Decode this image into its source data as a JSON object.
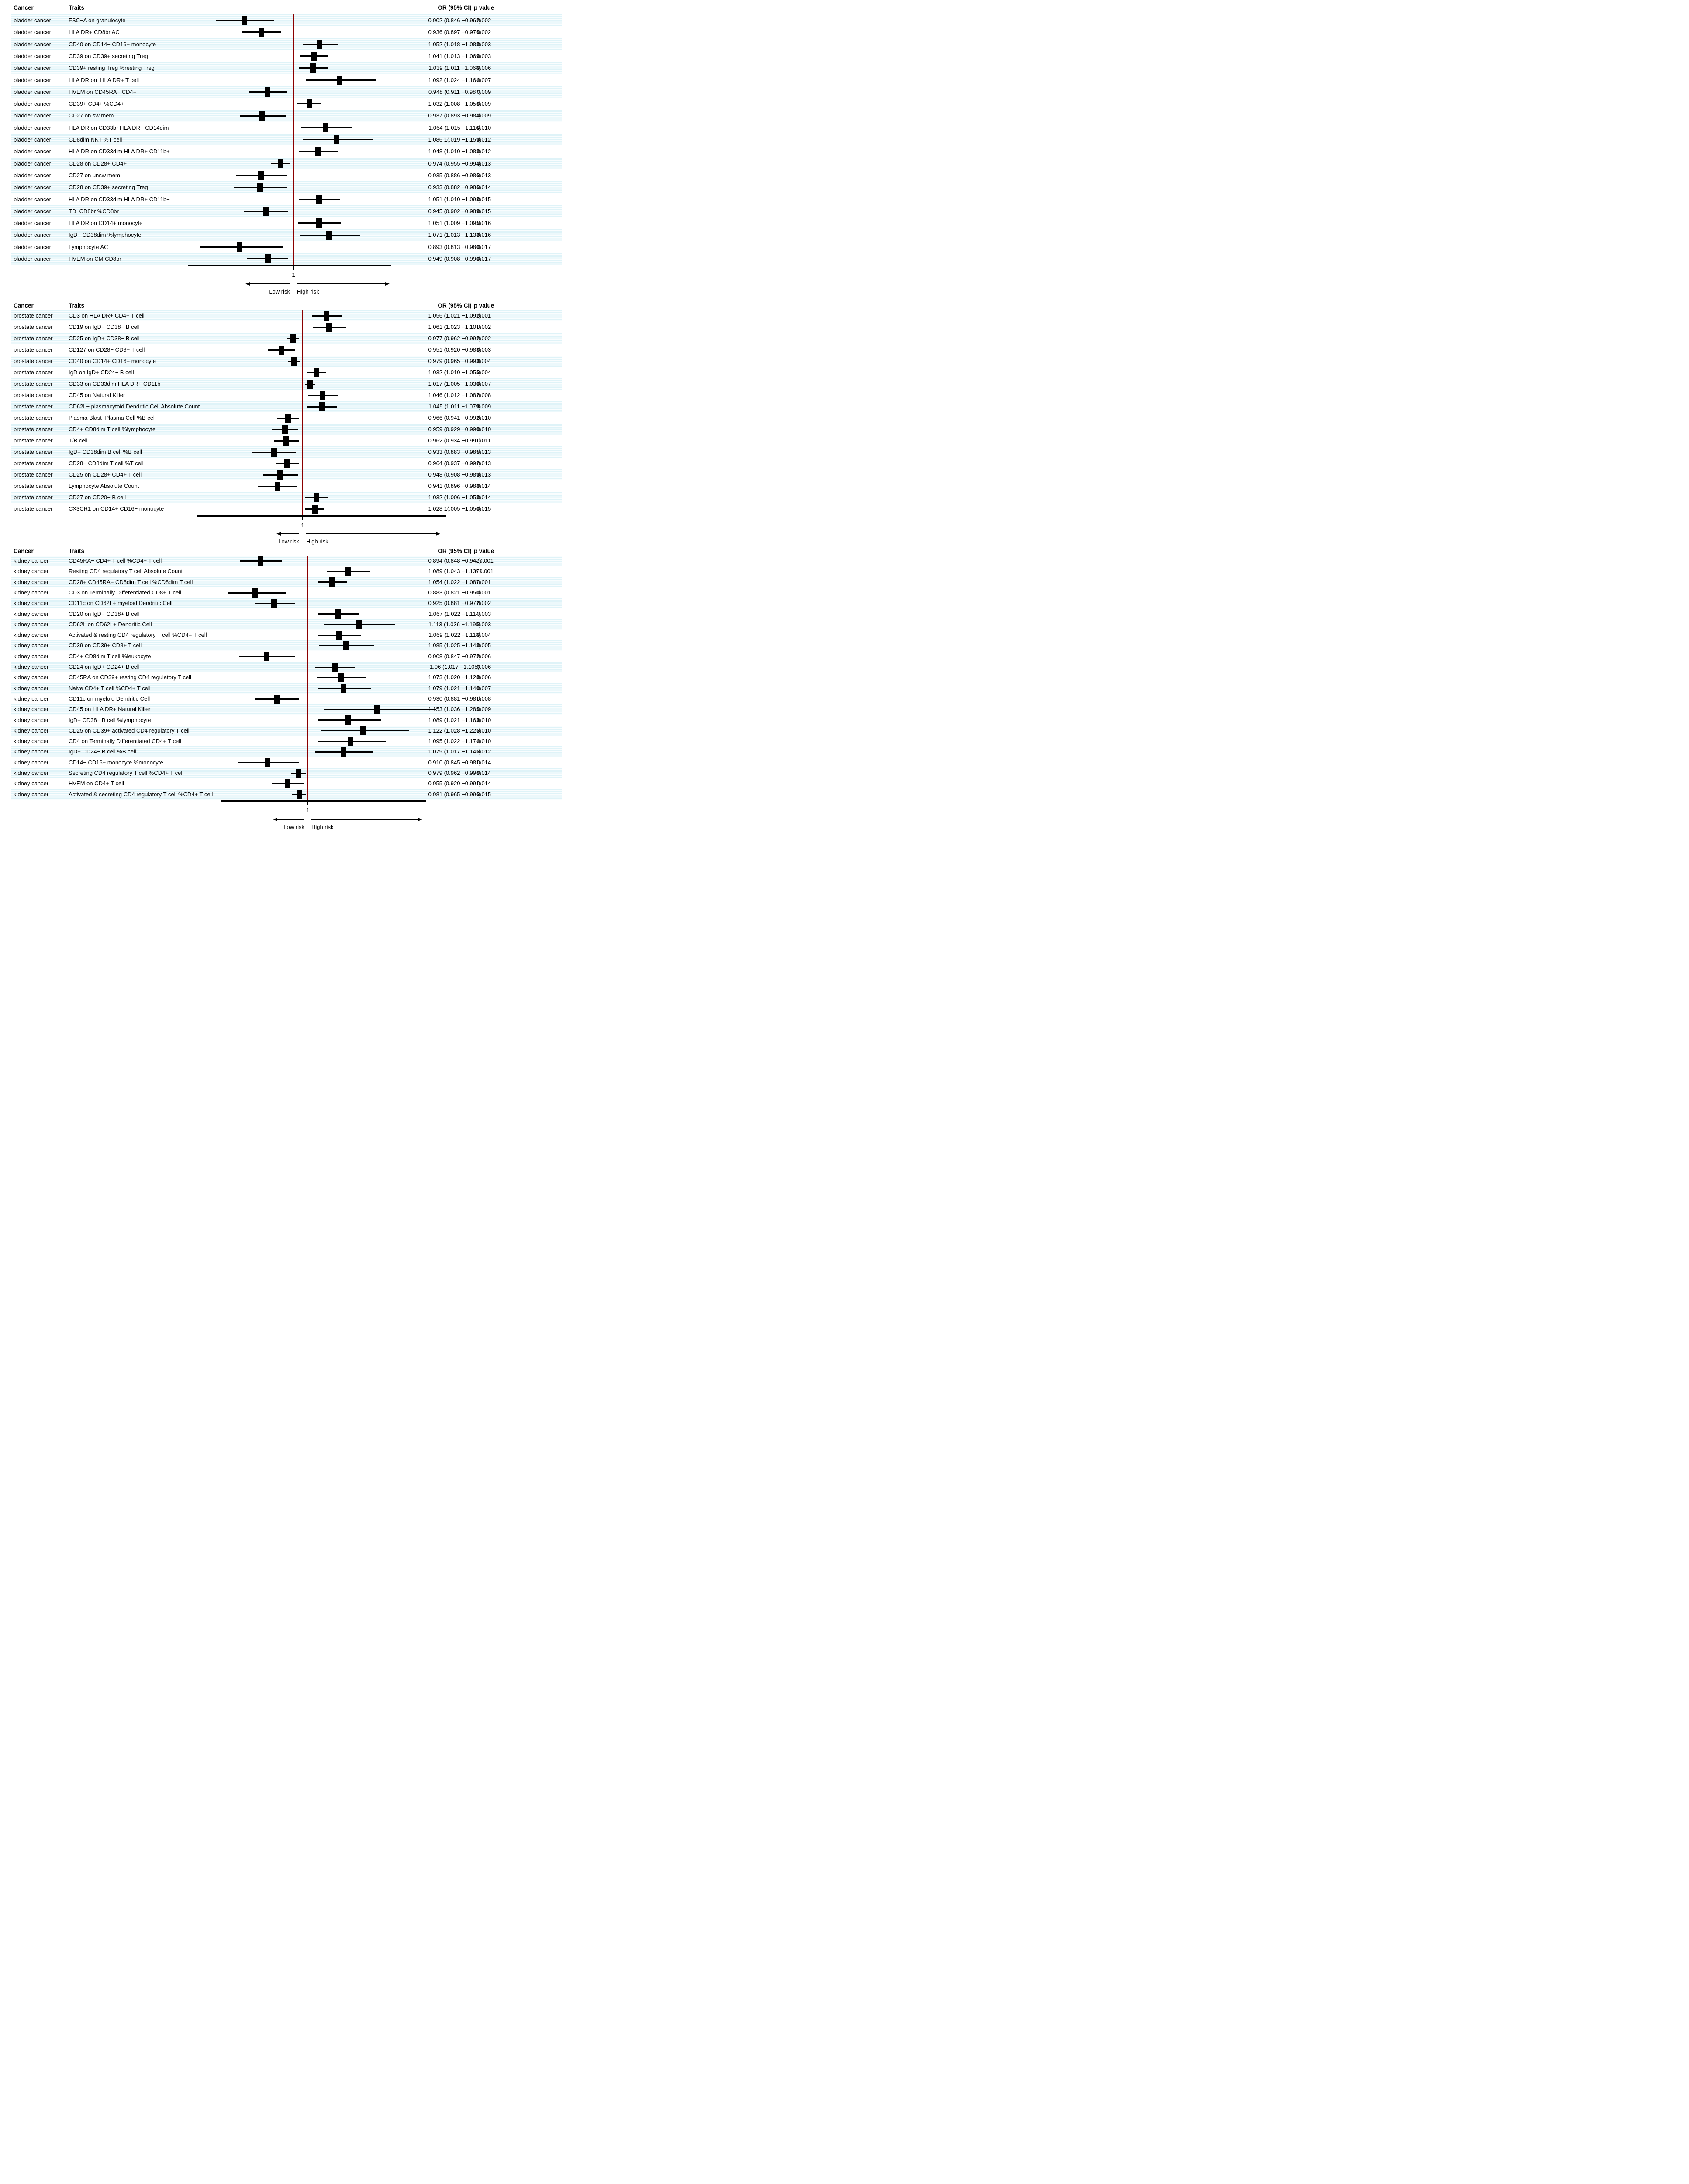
{
  "colors": {
    "background": "#ffffff",
    "stripe": "#dff3f8",
    "reference_line": "#8b0000",
    "marker": "#000000",
    "text": "#000000"
  },
  "chart_data": {
    "type": "forest",
    "columns": {
      "cancer": "Cancer",
      "traits": "Traits",
      "or": "OR (95% CI)",
      "p": "p value"
    },
    "axis": {
      "reference_value": 1,
      "tick_label": "1",
      "low_label": "Low risk",
      "high_label": "High risk"
    },
    "panels": [
      {
        "cancer": "bladder cancer",
        "rows": [
          {
            "trait": "FSC−A on granulocyte",
            "or": 0.902,
            "lo": 0.846,
            "hi": 0.962,
            "or_text": "0.902 (0.846 −0.962)",
            "p": "0.002"
          },
          {
            "trait": "HLA DR+ CD8br AC",
            "or": 0.936,
            "lo": 0.897,
            "hi": 0.976,
            "or_text": "0.936 (0.897 −0.976)",
            "p": "0.002"
          },
          {
            "trait": "CD40 on CD14− CD16+ monocyte",
            "or": 1.052,
            "lo": 1.018,
            "hi": 1.088,
            "or_text": "1.052 (1.018 −1.088)",
            "p": "0.003"
          },
          {
            "trait": "CD39 on CD39+ secreting Treg",
            "or": 1.041,
            "lo": 1.013,
            "hi": 1.069,
            "or_text": "1.041 (1.013 −1.069)",
            "p": "0.003"
          },
          {
            "trait": "CD39+ resting Treg %resting Treg",
            "or": 1.039,
            "lo": 1.011,
            "hi": 1.068,
            "or_text": "1.039 (1.011 −1.068)",
            "p": "0.006"
          },
          {
            "trait": "HLA DR on  HLA DR+ T cell",
            "or": 1.092,
            "lo": 1.024,
            "hi": 1.164,
            "or_text": "1.092 (1.024 −1.164)",
            "p": "0.007"
          },
          {
            "trait": "HVEM on CD45RA− CD4+",
            "or": 0.948,
            "lo": 0.911,
            "hi": 0.987,
            "or_text": "0.948 (0.911 −0.987)",
            "p": "0.009"
          },
          {
            "trait": "CD39+ CD4+ %CD4+",
            "or": 1.032,
            "lo": 1.008,
            "hi": 1.056,
            "or_text": "1.032 (1.008 −1.056)",
            "p": "0.009"
          },
          {
            "trait": "CD27 on sw mem",
            "or": 0.937,
            "lo": 0.893,
            "hi": 0.984,
            "or_text": "0.937 (0.893 −0.984)",
            "p": "0.009"
          },
          {
            "trait": "HLA DR on CD33br HLA DR+ CD14dim",
            "or": 1.064,
            "lo": 1.015,
            "hi": 1.116,
            "or_text": "1.064 (1.015 −1.116)",
            "p": "0.010"
          },
          {
            "trait": "CD8dim NKT %T cell",
            "or": 1.086,
            "lo": 1.019,
            "hi": 1.159,
            "or_text": "1.086 1(.019 −1.159)",
            "p": "0.012"
          },
          {
            "trait": "HLA DR on CD33dim HLA DR+ CD11b+",
            "or": 1.048,
            "lo": 1.01,
            "hi": 1.088,
            "or_text": "1.048 (1.010 −1.088)",
            "p": "0.012"
          },
          {
            "trait": "CD28 on CD28+ CD4+",
            "or": 0.974,
            "lo": 0.955,
            "hi": 0.994,
            "or_text": "0.974 (0.955 −0.994)",
            "p": "0.013"
          },
          {
            "trait": "CD27 on unsw mem",
            "or": 0.935,
            "lo": 0.886,
            "hi": 0.986,
            "or_text": "0.935 (0.886 −0.986)",
            "p": "0.013"
          },
          {
            "trait": "CD28 on CD39+ secreting Treg",
            "or": 0.933,
            "lo": 0.882,
            "hi": 0.986,
            "or_text": "0.933 (0.882 −0.986)",
            "p": "0.014"
          },
          {
            "trait": "HLA DR on CD33dim HLA DR+ CD11b−",
            "or": 1.051,
            "lo": 1.01,
            "hi": 1.093,
            "or_text": "1.051 (1.010 −1.093)",
            "p": "0.015"
          },
          {
            "trait": "TD  CD8br %CD8br",
            "or": 0.945,
            "lo": 0.902,
            "hi": 0.989,
            "or_text": "0.945 (0.902 −0.989)",
            "p": "0.015"
          },
          {
            "trait": "HLA DR on CD14+ monocyte",
            "or": 1.051,
            "lo": 1.009,
            "hi": 1.095,
            "or_text": "1.051 (1.009 −1.095)",
            "p": "0.016"
          },
          {
            "trait": "IgD− CD38dim %lymphocyte",
            "or": 1.071,
            "lo": 1.013,
            "hi": 1.133,
            "or_text": "1.071 (1.013 −1.133)",
            "p": "0.016"
          },
          {
            "trait": "Lymphocyte AC",
            "or": 0.893,
            "lo": 0.813,
            "hi": 0.98,
            "or_text": "0.893 (0.813 −0.980)",
            "p": "0.017"
          },
          {
            "trait": "HVEM on CM CD8br",
            "or": 0.949,
            "lo": 0.908,
            "hi": 0.99,
            "or_text": "0.949 (0.908 −0.990)",
            "p": "0.017"
          }
        ]
      },
      {
        "cancer": "prostate cancer",
        "rows": [
          {
            "trait": "CD3 on HLA DR+ CD4+ T cell",
            "or": 1.056,
            "lo": 1.021,
            "hi": 1.092,
            "or_text": "1.056 (1.021 −1.092)",
            "p": "0.001"
          },
          {
            "trait": "CD19 on IgD− CD38− B cell",
            "or": 1.061,
            "lo": 1.023,
            "hi": 1.101,
            "or_text": "1.061 (1.023 −1.101)",
            "p": "0.002"
          },
          {
            "trait": "CD25 on IgD+ CD38− B cell",
            "or": 0.977,
            "lo": 0.962,
            "hi": 0.992,
            "or_text": "0.977 (0.962 −0.992)",
            "p": "0.002"
          },
          {
            "trait": "CD127 on CD28− CD8+ T cell",
            "or": 0.951,
            "lo": 0.92,
            "hi": 0.983,
            "or_text": "0.951 (0.920 −0.983)",
            "p": "0.003"
          },
          {
            "trait": "CD40 on CD14+ CD16+ monocyte",
            "or": 0.979,
            "lo": 0.965,
            "hi": 0.993,
            "or_text": "0.979 (0.965 −0.993)",
            "p": "0.004"
          },
          {
            "trait": "IgD on IgD+ CD24− B cell",
            "or": 1.032,
            "lo": 1.01,
            "hi": 1.055,
            "or_text": "1.032 (1.010 −1.055)",
            "p": "0.004"
          },
          {
            "trait": "CD33 on CD33dim HLA DR+ CD11b−",
            "or": 1.017,
            "lo": 1.005,
            "hi": 1.03,
            "or_text": "1.017 (1.005 −1.030)",
            "p": "0.007"
          },
          {
            "trait": "CD45 on Natural Killer",
            "or": 1.046,
            "lo": 1.012,
            "hi": 1.082,
            "or_text": "1.046 (1.012 −1.082)",
            "p": "0.008"
          },
          {
            "trait": "CD62L− plasmacytoid Dendritic Cell Absolute Count",
            "or": 1.045,
            "lo": 1.011,
            "hi": 1.079,
            "or_text": "1.045 (1.011 −1.079)",
            "p": "0.009"
          },
          {
            "trait": "Plasma Blast−Plasma Cell %B cell",
            "or": 0.966,
            "lo": 0.941,
            "hi": 0.992,
            "or_text": "0.966 (0.941 −0.992)",
            "p": "0.010"
          },
          {
            "trait": "CD4+ CD8dim T cell %lymphocyte",
            "or": 0.959,
            "lo": 0.929,
            "hi": 0.99,
            "or_text": "0.959 (0.929 −0.990)",
            "p": "0.010"
          },
          {
            "trait": "T/B cell",
            "or": 0.962,
            "lo": 0.934,
            "hi": 0.991,
            "or_text": "0.962 (0.934 −0.991)",
            "p": "0.011"
          },
          {
            "trait": "IgD+ CD38dim B cell %B cell",
            "or": 0.933,
            "lo": 0.883,
            "hi": 0.985,
            "or_text": "0.933 (0.883 −0.985)",
            "p": "0.013"
          },
          {
            "trait": "CD28− CD8dim T cell %T cell",
            "or": 0.964,
            "lo": 0.937,
            "hi": 0.992,
            "or_text": "0.964 (0.937 −0.992)",
            "p": "0.013"
          },
          {
            "trait": "CD25 on CD28+ CD4+ T cell",
            "or": 0.948,
            "lo": 0.908,
            "hi": 0.989,
            "or_text": "0.948 (0.908 −0.989)",
            "p": "0.013"
          },
          {
            "trait": "Lymphocyte Absolute Count",
            "or": 0.941,
            "lo": 0.896,
            "hi": 0.988,
            "or_text": "0.941 (0.896 −0.988)",
            "p": "0.014"
          },
          {
            "trait": "CD27 on CD20− B cell",
            "or": 1.032,
            "lo": 1.006,
            "hi": 1.058,
            "or_text": "1.032 (1.006 −1.058)",
            "p": "0.014"
          },
          {
            "trait": "CX3CR1 on CD14+ CD16− monocyte",
            "or": 1.028,
            "lo": 1.005,
            "hi": 1.05,
            "or_text": "1.028 1(.005 −1.050)",
            "p": "0.015"
          }
        ]
      },
      {
        "cancer": "kidney cancer",
        "rows": [
          {
            "trait": "CD45RA− CD4+ T cell %CD4+ T cell",
            "or": 0.894,
            "lo": 0.848,
            "hi": 0.942,
            "or_text": "0.894 (0.848 −0.942)",
            "p": "< 0.001"
          },
          {
            "trait": "Resting CD4 regulatory T cell Absolute Count",
            "or": 1.089,
            "lo": 1.043,
            "hi": 1.137,
            "or_text": "1.089 (1.043 −1.137)",
            "p": "< 0.001"
          },
          {
            "trait": "CD28+ CD45RA+ CD8dim T cell %CD8dim T cell",
            "or": 1.054,
            "lo": 1.022,
            "hi": 1.087,
            "or_text": "1.054 (1.022 −1.087)",
            "p": "0.001"
          },
          {
            "trait": "CD3 on Terminally Differentiated CD8+ T cell",
            "or": 0.883,
            "lo": 0.821,
            "hi": 0.95,
            "or_text": "0.883 (0.821 −0.950)",
            "p": "0.001"
          },
          {
            "trait": "CD11c on CD62L+ myeloid Dendritic Cell",
            "or": 0.925,
            "lo": 0.881,
            "hi": 0.972,
            "or_text": "0.925 (0.881 −0.972)",
            "p": "0.002"
          },
          {
            "trait": "CD20 on IgD− CD38+ B cell",
            "or": 1.067,
            "lo": 1.022,
            "hi": 1.114,
            "or_text": "1.067 (1.022 −1.114)",
            "p": "0.003"
          },
          {
            "trait": "CD62L on CD62L+ Dendritic Cell",
            "or": 1.113,
            "lo": 1.036,
            "hi": 1.195,
            "or_text": "1.113 (1.036 −1.195)",
            "p": "0.003"
          },
          {
            "trait": "Activated & resting CD4 regulatory T cell %CD4+ T cell",
            "or": 1.069,
            "lo": 1.022,
            "hi": 1.118,
            "or_text": "1.069 (1.022 −1.118)",
            "p": "0.004"
          },
          {
            "trait": "CD39 on CD39+ CD8+ T cell",
            "or": 1.085,
            "lo": 1.025,
            "hi": 1.148,
            "or_text": "1.085 (1.025 −1.148)",
            "p": "0.005"
          },
          {
            "trait": "CD4+ CD8dim T cell %leukocyte",
            "or": 0.908,
            "lo": 0.847,
            "hi": 0.972,
            "or_text": "0.908 (0.847 −0.972)",
            "p": "0.006"
          },
          {
            "trait": "CD24 on IgD+ CD24+ B cell",
            "or": 1.06,
            "lo": 1.017,
            "hi": 1.105,
            "or_text": "1.06 (1.017 −1.105)",
            "p": "0.006"
          },
          {
            "trait": "CD45RA on CD39+ resting CD4 regulatory T cell",
            "or": 1.073,
            "lo": 1.02,
            "hi": 1.128,
            "or_text": "1.073 (1.020 −1.128)",
            "p": "0.006"
          },
          {
            "trait": "Naive CD4+ T cell %CD4+ T cell",
            "or": 1.079,
            "lo": 1.021,
            "hi": 1.14,
            "or_text": "1.079 (1.021 −1.140)",
            "p": "0.007"
          },
          {
            "trait": "CD11c on myeloid Dendritic Cell",
            "or": 0.93,
            "lo": 0.881,
            "hi": 0.981,
            "or_text": "0.930 (0.881 −0.981)",
            "p": "0.008"
          },
          {
            "trait": "CD45 on HLA DR+ Natural Killer",
            "or": 1.153,
            "lo": 1.036,
            "hi": 1.285,
            "or_text": "1.153 (1.036 −1.285)",
            "p": "0.009"
          },
          {
            "trait": "IgD+ CD38− B cell %lymphocyte",
            "or": 1.089,
            "lo": 1.021,
            "hi": 1.163,
            "or_text": "1.089 (1.021 −1.163)",
            "p": "0.010"
          },
          {
            "trait": "CD25 on CD39+ activated CD4 regulatory T cell",
            "or": 1.122,
            "lo": 1.028,
            "hi": 1.225,
            "or_text": "1.122 (1.028 −1.225)",
            "p": "0.010"
          },
          {
            "trait": "CD4 on Terminally Differentiated CD4+ T cell",
            "or": 1.095,
            "lo": 1.022,
            "hi": 1.174,
            "or_text": "1.095 (1.022 −1.174)",
            "p": "0.010"
          },
          {
            "trait": "IgD+ CD24− B cell %B cell",
            "or": 1.079,
            "lo": 1.017,
            "hi": 1.145,
            "or_text": "1.079 (1.017 −1.145)",
            "p": "0.012"
          },
          {
            "trait": "CD14− CD16+ monocyte %monocyte",
            "or": 0.91,
            "lo": 0.845,
            "hi": 0.981,
            "or_text": "0.910 (0.845 −0.981)",
            "p": "0.014"
          },
          {
            "trait": "Secreting CD4 regulatory T cell %CD4+ T cell",
            "or": 0.979,
            "lo": 0.962,
            "hi": 0.996,
            "or_text": "0.979 (0.962 −0.996)",
            "p": "0.014"
          },
          {
            "trait": "HVEM on CD4+ T cell",
            "or": 0.955,
            "lo": 0.92,
            "hi": 0.991,
            "or_text": "0.955 (0.920 −0.991)",
            "p": "0.014"
          },
          {
            "trait": "Activated & secreting CD4 regulatory T cell %CD4+ T cell",
            "or": 0.981,
            "lo": 0.965,
            "hi": 0.996,
            "or_text": "0.981 (0.965 −0.996)",
            "p": "0.015"
          }
        ]
      }
    ]
  }
}
